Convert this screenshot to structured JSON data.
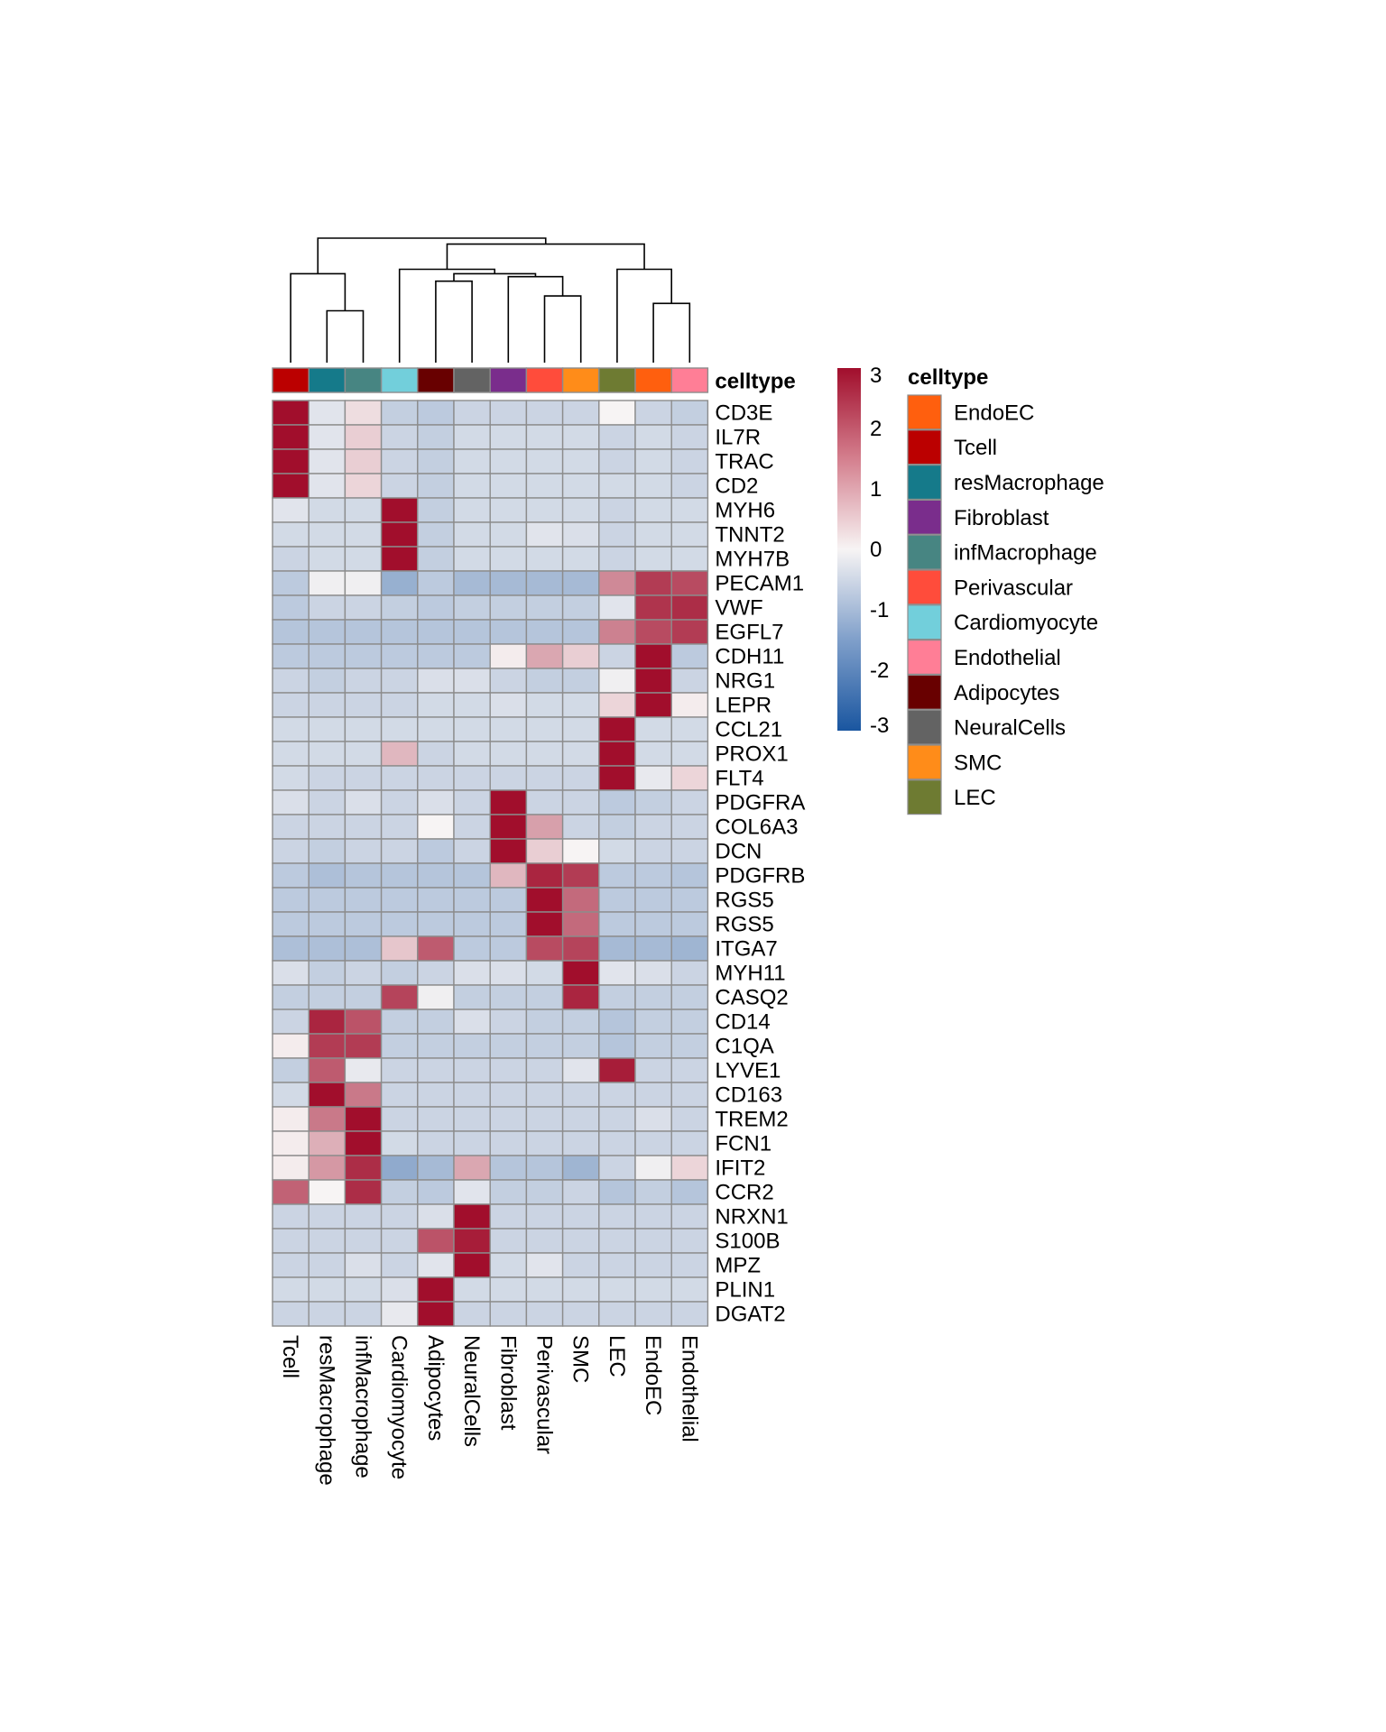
{
  "chart_data": {
    "type": "heatmap",
    "title": "",
    "columns": [
      "Tcell",
      "resMacrophage",
      "infMacrophage",
      "Cardiomyocyte",
      "Adipocytes",
      "NeuralCells",
      "Fibroblast",
      "Perivascular",
      "SMC",
      "LEC",
      "EndoEC",
      "Endothelial"
    ],
    "rows": [
      "CD3E",
      "IL7R",
      "TRAC",
      "CD2",
      "MYH6",
      "TNNT2",
      "MYH7B",
      "PECAM1",
      "VWF",
      "EGFL7",
      "CDH11",
      "NRG1",
      "LEPR",
      "CCL21",
      "PROX1",
      "FLT4",
      "PDGFRA",
      "COL6A3",
      "DCN",
      "PDGFRB",
      "RGS5",
      "RGS5",
      "ITGA7",
      "MYH11",
      "CASQ2",
      "CD14",
      "C1QA",
      "LYVE1",
      "CD163",
      "TREM2",
      "FCN1",
      "IFIT2",
      "CCR2",
      "NRXN1",
      "S100B",
      "MPZ",
      "PLIN1",
      "DGAT2"
    ],
    "values": [
      [
        3.2,
        -0.3,
        0.3,
        -0.7,
        -0.8,
        -0.6,
        -0.6,
        -0.6,
        -0.6,
        0.0,
        -0.6,
        -0.7
      ],
      [
        3.2,
        -0.3,
        0.5,
        -0.6,
        -0.7,
        -0.5,
        -0.5,
        -0.5,
        -0.5,
        -0.6,
        -0.5,
        -0.6
      ],
      [
        3.2,
        -0.3,
        0.5,
        -0.6,
        -0.7,
        -0.5,
        -0.5,
        -0.5,
        -0.5,
        -0.6,
        -0.5,
        -0.6
      ],
      [
        3.2,
        -0.3,
        0.4,
        -0.6,
        -0.7,
        -0.5,
        -0.5,
        -0.5,
        -0.5,
        -0.5,
        -0.5,
        -0.6
      ],
      [
        -0.3,
        -0.5,
        -0.5,
        3.2,
        -0.7,
        -0.5,
        -0.5,
        -0.5,
        -0.5,
        -0.6,
        -0.5,
        -0.5
      ],
      [
        -0.5,
        -0.5,
        -0.5,
        3.2,
        -0.7,
        -0.5,
        -0.5,
        -0.3,
        -0.4,
        -0.6,
        -0.5,
        -0.5
      ],
      [
        -0.6,
        -0.5,
        -0.5,
        3.2,
        -0.7,
        -0.5,
        -0.5,
        -0.5,
        -0.5,
        -0.6,
        -0.5,
        -0.5
      ],
      [
        -0.8,
        -0.1,
        -0.1,
        -1.3,
        -0.8,
        -1.1,
        -1.1,
        -1.1,
        -1.1,
        1.4,
        2.4,
        2.2
      ],
      [
        -0.8,
        -0.6,
        -0.6,
        -0.7,
        -0.8,
        -0.7,
        -0.7,
        -0.7,
        -0.7,
        -0.3,
        2.5,
        2.6
      ],
      [
        -0.9,
        -0.9,
        -0.9,
        -0.9,
        -0.9,
        -0.9,
        -0.9,
        -0.9,
        -0.9,
        1.5,
        2.2,
        2.4
      ],
      [
        -0.8,
        -0.8,
        -0.8,
        -0.8,
        -0.8,
        -0.8,
        0.1,
        1.0,
        0.5,
        -0.6,
        3.3,
        -0.8
      ],
      [
        -0.6,
        -0.7,
        -0.6,
        -0.6,
        -0.4,
        -0.4,
        -0.6,
        -0.7,
        -0.7,
        -0.1,
        3.3,
        -0.6
      ],
      [
        -0.6,
        -0.6,
        -0.6,
        -0.6,
        -0.5,
        -0.5,
        -0.4,
        -0.5,
        -0.5,
        0.4,
        3.3,
        0.1
      ],
      [
        -0.5,
        -0.5,
        -0.5,
        -0.5,
        -0.5,
        -0.5,
        -0.5,
        -0.5,
        -0.5,
        3.3,
        -0.5,
        -0.5
      ],
      [
        -0.5,
        -0.5,
        -0.5,
        0.8,
        -0.6,
        -0.5,
        -0.5,
        -0.5,
        -0.5,
        3.3,
        -0.5,
        -0.5
      ],
      [
        -0.5,
        -0.6,
        -0.6,
        -0.6,
        -0.6,
        -0.6,
        -0.6,
        -0.6,
        -0.6,
        3.3,
        -0.2,
        0.4
      ],
      [
        -0.4,
        -0.6,
        -0.4,
        -0.6,
        -0.4,
        -0.6,
        3.3,
        -0.6,
        -0.6,
        -0.8,
        -0.7,
        -0.6
      ],
      [
        -0.6,
        -0.6,
        -0.6,
        -0.6,
        0.0,
        -0.6,
        3.3,
        1.1,
        -0.6,
        -0.7,
        -0.6,
        -0.6
      ],
      [
        -0.6,
        -0.7,
        -0.6,
        -0.6,
        -0.8,
        -0.6,
        3.3,
        0.5,
        0.0,
        -0.5,
        -0.6,
        -0.6
      ],
      [
        -0.8,
        -1.0,
        -0.9,
        -0.9,
        -0.9,
        -0.9,
        0.8,
        2.7,
        2.4,
        -0.8,
        -0.8,
        -0.9
      ],
      [
        -0.8,
        -0.8,
        -0.8,
        -0.8,
        -0.8,
        -0.8,
        -0.8,
        3.1,
        1.8,
        -0.8,
        -0.8,
        -0.8
      ],
      [
        -0.8,
        -0.8,
        -0.8,
        -0.8,
        -0.8,
        -0.8,
        -0.8,
        3.1,
        1.8,
        -0.8,
        -0.8,
        -0.8
      ],
      [
        -1.0,
        -1.0,
        -1.0,
        0.6,
        2.0,
        -0.8,
        -0.8,
        2.2,
        2.3,
        -1.1,
        -1.1,
        -1.2
      ],
      [
        -0.4,
        -0.7,
        -0.6,
        -0.7,
        -0.6,
        -0.4,
        -0.4,
        -0.5,
        3.3,
        -0.3,
        -0.4,
        -0.6
      ],
      [
        -0.7,
        -0.7,
        -0.7,
        2.3,
        -0.1,
        -0.7,
        -0.7,
        -0.7,
        2.7,
        -0.7,
        -0.7,
        -0.7
      ],
      [
        -0.6,
        2.7,
        2.1,
        -0.7,
        -0.7,
        -0.4,
        -0.6,
        -0.7,
        -0.7,
        -0.9,
        -0.7,
        -0.7
      ],
      [
        0.1,
        2.4,
        2.4,
        -0.7,
        -0.7,
        -0.7,
        -0.7,
        -0.7,
        -0.7,
        -0.9,
        -0.7,
        -0.7
      ],
      [
        -0.7,
        2.0,
        -0.2,
        -0.6,
        -0.6,
        -0.6,
        -0.6,
        -0.6,
        -0.3,
        2.8,
        -0.6,
        -0.6
      ],
      [
        -0.5,
        3.1,
        1.6,
        -0.6,
        -0.6,
        -0.6,
        -0.6,
        -0.6,
        -0.6,
        -0.6,
        -0.6,
        -0.6
      ],
      [
        0.1,
        1.6,
        3.2,
        -0.6,
        -0.6,
        -0.6,
        -0.6,
        -0.6,
        -0.6,
        -0.6,
        -0.4,
        -0.6
      ],
      [
        0.1,
        0.9,
        3.3,
        -0.5,
        -0.6,
        -0.6,
        -0.6,
        -0.6,
        -0.6,
        -0.6,
        -0.6,
        -0.6
      ],
      [
        0.1,
        1.2,
        2.6,
        -1.4,
        -1.1,
        1.0,
        -0.9,
        -0.9,
        -1.2,
        -0.6,
        -0.1,
        0.4
      ],
      [
        1.9,
        0.0,
        2.6,
        -0.7,
        -0.8,
        -0.3,
        -0.7,
        -0.7,
        -0.6,
        -0.9,
        -0.7,
        -0.9
      ],
      [
        -0.6,
        -0.6,
        -0.6,
        -0.6,
        -0.4,
        3.3,
        -0.6,
        -0.6,
        -0.6,
        -0.6,
        -0.6,
        -0.6
      ],
      [
        -0.6,
        -0.6,
        -0.6,
        -0.6,
        2.1,
        2.8,
        -0.6,
        -0.6,
        -0.6,
        -0.6,
        -0.6,
        -0.6
      ],
      [
        -0.6,
        -0.6,
        -0.4,
        -0.6,
        -0.3,
        3.3,
        -0.5,
        -0.3,
        -0.6,
        -0.6,
        -0.6,
        -0.6
      ],
      [
        -0.5,
        -0.5,
        -0.5,
        -0.4,
        3.3,
        -0.5,
        -0.5,
        -0.5,
        -0.5,
        -0.5,
        -0.5,
        -0.5
      ],
      [
        -0.6,
        -0.6,
        -0.6,
        -0.2,
        3.3,
        -0.6,
        -0.6,
        -0.6,
        -0.6,
        -0.6,
        -0.6,
        -0.6
      ]
    ],
    "color_scale": {
      "min": -3,
      "max": 3,
      "ticks": [
        "3",
        "2",
        "1",
        "0",
        "-1",
        "-2",
        "-3"
      ],
      "low_color": "#1a56a0",
      "mid_color": "#f7f4f4",
      "high_color": "#a10e2c"
    },
    "annotation": {
      "title": "celltype",
      "column_colors": [
        "#bb0000",
        "#157a8a",
        "#478582",
        "#72cfdb",
        "#680000",
        "#636363",
        "#7a2d8c",
        "#ff4c3b",
        "#ff8c19",
        "#6e7b32",
        "#ff5f0e",
        "#ff7e96"
      ]
    },
    "legend": {
      "title": "celltype",
      "items": [
        {
          "label": "EndoEC",
          "color": "#ff5f0e"
        },
        {
          "label": "Tcell",
          "color": "#bb0000"
        },
        {
          "label": "resMacrophage",
          "color": "#157a8a"
        },
        {
          "label": "Fibroblast",
          "color": "#7a2d8c"
        },
        {
          "label": "infMacrophage",
          "color": "#478582"
        },
        {
          "label": "Perivascular",
          "color": "#ff4c3b"
        },
        {
          "label": "Cardiomyocyte",
          "color": "#72cfdb"
        },
        {
          "label": "Endothelial",
          "color": "#ff7e96"
        },
        {
          "label": "Adipocytes",
          "color": "#680000"
        },
        {
          "label": "NeuralCells",
          "color": "#636363"
        },
        {
          "label": "SMC",
          "color": "#ff8c19"
        },
        {
          "label": "LEC",
          "color": "#6e7b32"
        }
      ]
    },
    "dendrogram_merges": [
      {
        "left": [
          "c",
          1
        ],
        "right": [
          "c",
          2
        ],
        "height": 0.35
      },
      {
        "left": [
          "c",
          10
        ],
        "right": [
          "c",
          11
        ],
        "height": 0.4
      },
      {
        "left": [
          "c",
          7
        ],
        "right": [
          "c",
          8
        ],
        "height": 0.45
      },
      {
        "left": [
          "c",
          4
        ],
        "right": [
          "c",
          5
        ],
        "height": 0.55
      },
      {
        "left": [
          "m",
          2
        ],
        "right": [
          "m",
          2
        ],
        "height": 0
      },
      {
        "left": [
          "c",
          6
        ],
        "right": [
          "m",
          2
        ],
        "height": 0.58
      },
      {
        "left": [
          "m",
          3
        ],
        "right": [
          "m",
          5
        ],
        "height": 0.6
      },
      {
        "left": [
          "c",
          0
        ],
        "right": [
          "m",
          0
        ],
        "height": 0.6
      },
      {
        "left": [
          "c",
          9
        ],
        "right": [
          "m",
          1
        ],
        "height": 0.63
      },
      {
        "left": [
          "c",
          3
        ],
        "right": [
          "m",
          6
        ],
        "height": 0.63
      },
      {
        "left": [
          "m",
          9
        ],
        "right": [
          "m",
          8
        ],
        "height": 0.8
      },
      {
        "left": [
          "m",
          7
        ],
        "right": [
          "m",
          10
        ],
        "height": 0.84
      }
    ]
  }
}
